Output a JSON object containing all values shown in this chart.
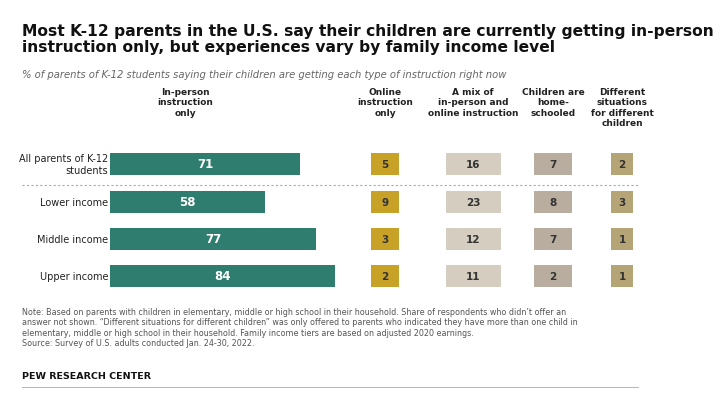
{
  "title_line1": "Most K-12 parents in the U.S. say their children are currently getting in-person",
  "title_line2": "instruction only, but experiences vary by family income level",
  "subtitle": "% of parents of K-12 students saying their children are getting each type of instruction right now",
  "note": "Note: Based on parents with children in elementary, middle or high school in their household. Share of respondents who didn’t offer an\nanswer not shown. “Different situations for different children” was only offered to parents who indicated they have more than one child in\nelementary, middle or high school in their household. Family income tiers are based on adjusted 2020 earnings.\nSource: Survey of U.S. adults conducted Jan. 24-30, 2022.",
  "source_label": "PEW RESEARCH CENTER",
  "row_labels": [
    "All parents of K-12\nstudents",
    "Lower income",
    "Middle income",
    "Upper income"
  ],
  "col_headers": [
    "In-person\ninstruction\nonly",
    "Online\ninstruction\nonly",
    "A mix of\nin-person and\nonline instruction",
    "Children are\nhome-\nschooled",
    "Different\nsituations\nfor different\nchildren"
  ],
  "data": [
    [
      71,
      5,
      16,
      7,
      2
    ],
    [
      58,
      9,
      23,
      8,
      3
    ],
    [
      77,
      3,
      12,
      7,
      1
    ],
    [
      84,
      2,
      11,
      2,
      1
    ]
  ],
  "colors": [
    "#2e7d6e",
    "#c8a227",
    "#d4cdc0",
    "#b8ad9e",
    "#b5a476"
  ],
  "background_color": "#ffffff"
}
